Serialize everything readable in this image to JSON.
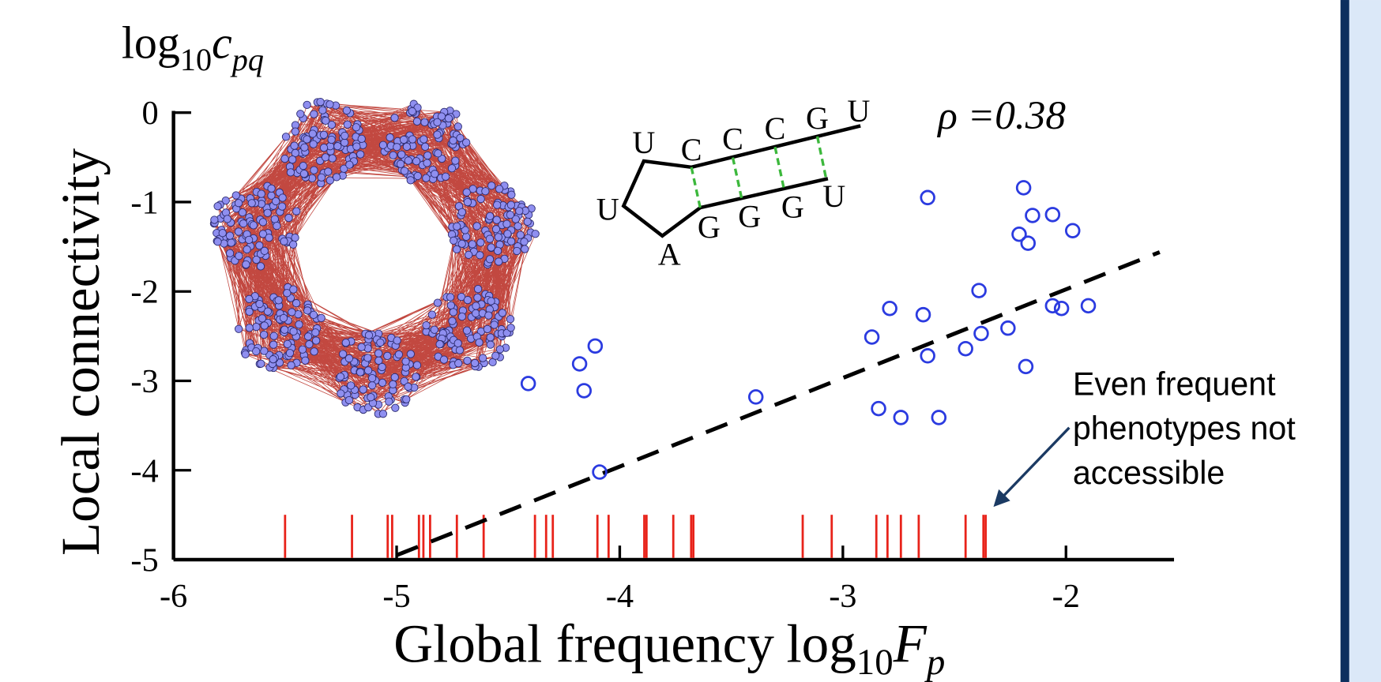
{
  "chart_data": {
    "type": "scatter",
    "y_label": "Local connectivity",
    "y_label_math": [
      "log",
      "10",
      "c",
      "pq"
    ],
    "x_label": "Global frequency",
    "x_label_math": [
      "log",
      "10",
      "F",
      "p"
    ],
    "xlim": [
      -6,
      -1.5
    ],
    "ylim": [
      -5,
      0
    ],
    "xticks": [
      -6,
      -5,
      -4,
      -3,
      -2
    ],
    "yticks": [
      0,
      -1,
      -2,
      -3,
      -4,
      -5
    ],
    "scatter": {
      "color": "#2b3be0",
      "x": [
        -2.62,
        -2.19,
        -2.15,
        -2.06,
        -1.97,
        -2.21,
        -2.17,
        -2.39,
        -2.79,
        -2.64,
        -2.06,
        -2.02,
        -1.9,
        -2.87,
        -2.38,
        -2.26,
        -2.45,
        -2.62,
        -2.18,
        -2.84,
        -2.74,
        -2.57,
        -3.39,
        -4.11,
        -4.18,
        -4.16,
        -4.41,
        -4.09
      ],
      "y": [
        -0.95,
        -0.84,
        -1.15,
        -1.14,
        -1.32,
        -1.36,
        -1.46,
        -1.99,
        -2.19,
        -2.26,
        -2.16,
        -2.19,
        -2.16,
        -2.51,
        -2.47,
        -2.41,
        -2.64,
        -2.72,
        -2.84,
        -3.31,
        -3.41,
        -3.41,
        -3.18,
        -2.61,
        -2.81,
        -3.11,
        -3.03,
        -4.02
      ]
    },
    "rug": {
      "color": "#e8231a",
      "x": [
        -5.5,
        -5.2,
        -5.04,
        -5.02,
        -4.9,
        -4.88,
        -4.85,
        -4.73,
        -4.61,
        -4.38,
        -4.33,
        -4.3,
        -4.1,
        -4.05,
        -3.89,
        -3.88,
        -3.76,
        -3.68,
        -3.67,
        -3.18,
        -3.05,
        -2.85,
        -2.8,
        -2.74,
        -2.66,
        -2.45,
        -2.37,
        -2.36
      ]
    },
    "fit": {
      "color": "#000000",
      "x": [
        -5.0,
        -1.58
      ],
      "y": [
        -4.95,
        -1.56
      ]
    },
    "correlation": "ρ =0.38",
    "annotation": [
      "Even frequent",
      "phenotypes not",
      "accessible"
    ],
    "rna": {
      "loop": [
        "U",
        "U",
        "A"
      ],
      "top_strand": [
        "C",
        "C",
        "C",
        "G",
        "U"
      ],
      "bottom_strand": [
        "G",
        "G",
        "G",
        "U"
      ]
    }
  }
}
